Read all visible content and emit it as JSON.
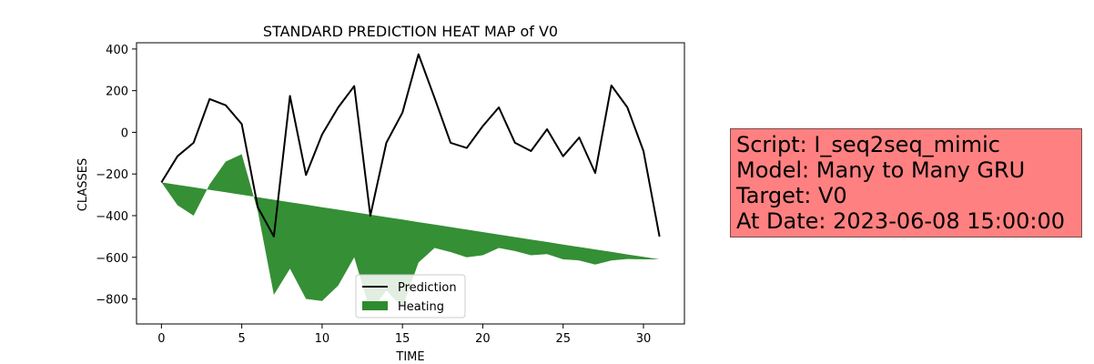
{
  "chart_data": {
    "type": "line",
    "title": "STANDARD PREDICTION HEAT MAP of V0",
    "xlabel": "TIME",
    "ylabel": "CLASSES",
    "xlim": [
      -1.55,
      32.55
    ],
    "ylim": [
      -920,
      430
    ],
    "xticks": [
      0,
      5,
      10,
      15,
      20,
      25,
      30
    ],
    "yticks": [
      400,
      200,
      0,
      -200,
      -400,
      -600,
      -800
    ],
    "grid": false,
    "legend_position": "lower-center",
    "x": [
      0,
      1,
      2,
      3,
      4,
      5,
      6,
      7,
      8,
      9,
      10,
      11,
      12,
      13,
      14,
      15,
      16,
      17,
      18,
      19,
      20,
      21,
      22,
      23,
      24,
      25,
      26,
      27,
      28,
      29,
      30,
      31
    ],
    "series": [
      {
        "name": "Prediction",
        "kind": "line",
        "color": "#000000",
        "values": [
          -240,
          -115,
          -50,
          160,
          130,
          40,
          -360,
          -500,
          175,
          -205,
          -10,
          120,
          222,
          -400,
          -50,
          95,
          375,
          165,
          -50,
          -75,
          30,
          120,
          -50,
          -90,
          15,
          -115,
          -25,
          -195,
          225,
          120,
          -90,
          -500
        ]
      },
      {
        "name": "Heating",
        "kind": "area",
        "color": "#2e8b2e",
        "lower": [
          -240,
          -350,
          -400,
          -250,
          -140,
          -105,
          -380,
          -780,
          -655,
          -800,
          -810,
          -735,
          -600,
          -860,
          -760,
          -840,
          -625,
          -555,
          -575,
          -600,
          -590,
          -555,
          -570,
          -590,
          -585,
          -610,
          -615,
          -635,
          -615,
          -608,
          -610,
          -610
        ],
        "upper_start": -240,
        "upper_end": -610
      }
    ]
  },
  "info": {
    "script": "Script: I_seq2seq_mimic",
    "model": "Model: Many to Many GRU",
    "target": "Target: V0",
    "date": "At Date: 2023-06-08 15:00:00"
  }
}
